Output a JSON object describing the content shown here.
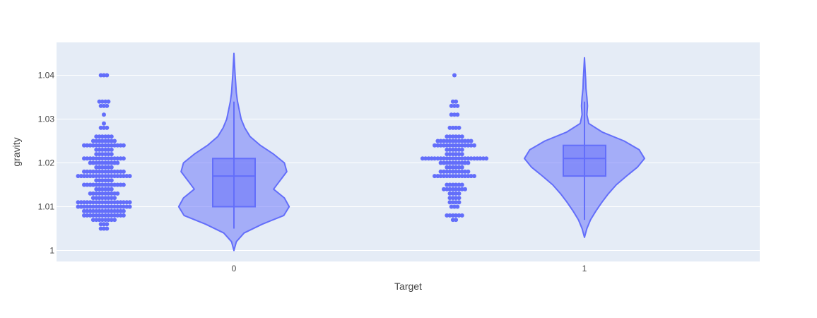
{
  "chart_data": {
    "type": "violin",
    "xlabel": "Target",
    "ylabel": "gravity",
    "categories": [
      "0",
      "1"
    ],
    "ylim": [
      0.9975,
      1.0475
    ],
    "yticks": [
      1,
      1.01,
      1.02,
      1.03,
      1.04
    ],
    "ytick_labels": [
      "1",
      "1.01",
      "1.02",
      "1.03",
      "1.04"
    ],
    "grid": true,
    "colors": {
      "plot_background": "#e5ecf6",
      "grid": "#ffffff",
      "marker": "#636efa",
      "violin_fill": "#636efa",
      "violin_line": "#636efa"
    },
    "series": [
      {
        "category": "0",
        "box": {
          "min": 1.005,
          "q1": 1.01,
          "median": 1.017,
          "q3": 1.021,
          "max": 1.034
        },
        "density": [
          [
            1.0,
            0.0
          ],
          [
            1.002,
            0.04
          ],
          [
            1.004,
            0.17
          ],
          [
            1.006,
            0.47
          ],
          [
            1.008,
            0.83
          ],
          [
            1.01,
            0.92
          ],
          [
            1.012,
            0.84
          ],
          [
            1.014,
            0.66
          ],
          [
            1.016,
            0.77
          ],
          [
            1.018,
            0.88
          ],
          [
            1.02,
            0.84
          ],
          [
            1.022,
            0.66
          ],
          [
            1.024,
            0.44
          ],
          [
            1.026,
            0.27
          ],
          [
            1.028,
            0.18
          ],
          [
            1.03,
            0.12
          ],
          [
            1.032,
            0.09
          ],
          [
            1.034,
            0.06
          ],
          [
            1.036,
            0.04
          ],
          [
            1.038,
            0.03
          ],
          [
            1.04,
            0.02
          ],
          [
            1.042,
            0.012
          ],
          [
            1.045,
            0.0
          ]
        ],
        "points": [
          {
            "y": 1.04,
            "n": 3
          },
          {
            "y": 1.034,
            "n": 4
          },
          {
            "y": 1.033,
            "n": 3
          },
          {
            "y": 1.031,
            "n": 1
          },
          {
            "y": 1.029,
            "n": 1
          },
          {
            "y": 1.028,
            "n": 3
          },
          {
            "y": 1.026,
            "n": 6
          },
          {
            "y": 1.025,
            "n": 8
          },
          {
            "y": 1.024,
            "n": 14
          },
          {
            "y": 1.023,
            "n": 6
          },
          {
            "y": 1.022,
            "n": 6
          },
          {
            "y": 1.021,
            "n": 14
          },
          {
            "y": 1.02,
            "n": 10
          },
          {
            "y": 1.019,
            "n": 6
          },
          {
            "y": 1.018,
            "n": 14
          },
          {
            "y": 1.017,
            "n": 18
          },
          {
            "y": 1.016,
            "n": 6
          },
          {
            "y": 1.015,
            "n": 14
          },
          {
            "y": 1.014,
            "n": 6
          },
          {
            "y": 1.013,
            "n": 10
          },
          {
            "y": 1.012,
            "n": 8
          },
          {
            "y": 1.011,
            "n": 18
          },
          {
            "y": 1.01,
            "n": 18
          },
          {
            "y": 1.009,
            "n": 14
          },
          {
            "y": 1.008,
            "n": 14
          },
          {
            "y": 1.007,
            "n": 8
          },
          {
            "y": 1.006,
            "n": 3
          },
          {
            "y": 1.005,
            "n": 3
          }
        ]
      },
      {
        "category": "1",
        "box": {
          "min": 1.007,
          "q1": 1.017,
          "median": 1.021,
          "q3": 1.024,
          "max": 1.034
        },
        "density": [
          [
            1.003,
            0.0
          ],
          [
            1.005,
            0.04
          ],
          [
            1.007,
            0.1
          ],
          [
            1.009,
            0.19
          ],
          [
            1.011,
            0.29
          ],
          [
            1.013,
            0.4
          ],
          [
            1.015,
            0.53
          ],
          [
            1.017,
            0.7
          ],
          [
            1.019,
            0.88
          ],
          [
            1.021,
            1.0
          ],
          [
            1.023,
            0.91
          ],
          [
            1.025,
            0.66
          ],
          [
            1.027,
            0.3
          ],
          [
            1.029,
            0.07
          ],
          [
            1.031,
            0.04
          ],
          [
            1.033,
            0.05
          ],
          [
            1.035,
            0.04
          ],
          [
            1.037,
            0.025
          ],
          [
            1.039,
            0.02
          ],
          [
            1.041,
            0.012
          ],
          [
            1.044,
            0.0
          ]
        ],
        "points": [
          {
            "y": 1.04,
            "n": 1
          },
          {
            "y": 1.034,
            "n": 2
          },
          {
            "y": 1.033,
            "n": 3
          },
          {
            "y": 1.031,
            "n": 3
          },
          {
            "y": 1.028,
            "n": 4
          },
          {
            "y": 1.026,
            "n": 6
          },
          {
            "y": 1.025,
            "n": 12
          },
          {
            "y": 1.024,
            "n": 14
          },
          {
            "y": 1.023,
            "n": 6
          },
          {
            "y": 1.022,
            "n": 6
          },
          {
            "y": 1.021,
            "n": 22
          },
          {
            "y": 1.02,
            "n": 10
          },
          {
            "y": 1.019,
            "n": 6
          },
          {
            "y": 1.018,
            "n": 10
          },
          {
            "y": 1.017,
            "n": 14
          },
          {
            "y": 1.015,
            "n": 6
          },
          {
            "y": 1.014,
            "n": 8
          },
          {
            "y": 1.013,
            "n": 4
          },
          {
            "y": 1.012,
            "n": 4
          },
          {
            "y": 1.011,
            "n": 4
          },
          {
            "y": 1.01,
            "n": 3
          },
          {
            "y": 1.008,
            "n": 6
          },
          {
            "y": 1.007,
            "n": 2
          }
        ]
      }
    ]
  }
}
